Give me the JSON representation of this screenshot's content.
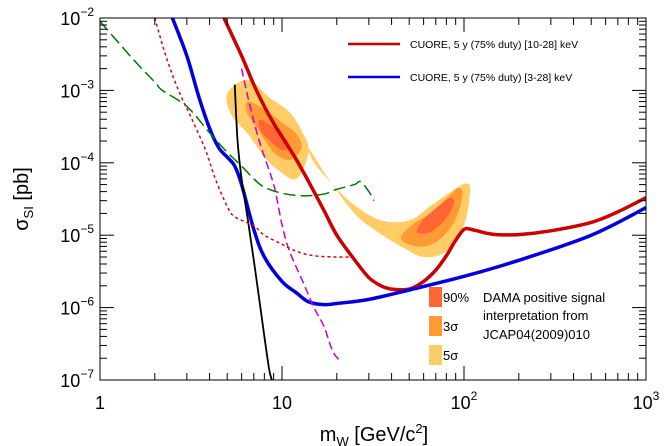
{
  "chart_data": {
    "type": "line",
    "x_scale": "log",
    "y_scale": "log",
    "xlim": [
      1,
      1000
    ],
    "ylim": [
      1e-07,
      0.01
    ],
    "xlabel": {
      "main": "m",
      "sub": "W",
      "unit_pre": " [GeV/c",
      "unit_sup": "2",
      "unit_post": "]"
    },
    "ylabel": {
      "main": "σ",
      "sub": "SI",
      "unit": " [pb]"
    },
    "x_ticks": [
      {
        "value": 1,
        "label": "1",
        "sup": ""
      },
      {
        "value": 10,
        "label": "10",
        "sup": ""
      },
      {
        "value": 100,
        "label": "10",
        "sup": "2"
      },
      {
        "value": 1000,
        "label": "10",
        "sup": "3"
      }
    ],
    "y_ticks": [
      {
        "value": 1e-07,
        "label": "10",
        "sup": "−7"
      },
      {
        "value": 1e-06,
        "label": "10",
        "sup": "−6"
      },
      {
        "value": 1e-05,
        "label": "10",
        "sup": "−5"
      },
      {
        "value": 0.0001,
        "label": "10",
        "sup": "−4"
      },
      {
        "value": 0.001,
        "label": "10",
        "sup": "−3"
      },
      {
        "value": 0.01,
        "label": "10",
        "sup": "−2"
      }
    ],
    "regions": [
      {
        "level": "5sigma",
        "color": "#ffcc66",
        "polygons": [
          [
            [
              5,
              0.0009
            ],
            [
              6.5,
              0.0014
            ],
            [
              8.5,
              0.0008
            ],
            [
              11,
              0.0005
            ],
            [
              13,
              0.00026
            ],
            [
              14,
              0.00014
            ],
            [
              12,
              6e-05
            ],
            [
              9.5,
              8e-05
            ],
            [
              8,
              0.00012
            ],
            [
              6.5,
              0.00025
            ],
            [
              5.3,
              0.00045
            ]
          ],
          [
            [
              14,
              0.00016
            ],
            [
              18,
              6e-05
            ],
            [
              25,
              2e-05
            ],
            [
              32,
              1.2e-05
            ],
            [
              45,
              7e-06
            ],
            [
              60,
              5e-06
            ],
            [
              80,
              6e-06
            ],
            [
              100,
              1.4e-05
            ],
            [
              108,
              4e-05
            ],
            [
              103,
              5.2e-05
            ],
            [
              85,
              4e-05
            ],
            [
              65,
              2.5e-05
            ],
            [
              50,
              1.6e-05
            ],
            [
              35,
              1.6e-05
            ],
            [
              25,
              2.6e-05
            ],
            [
              19,
              5e-05
            ],
            [
              15,
              0.0001
            ]
          ]
        ]
      },
      {
        "level": "3sigma",
        "color": "#ff9933",
        "polygons": [
          [
            [
              6.5,
              0.0007
            ],
            [
              8,
              0.00055
            ],
            [
              10,
              0.00036
            ],
            [
              12,
              0.00025
            ],
            [
              12.8,
              0.00016
            ],
            [
              11,
              0.00011
            ],
            [
              9,
              0.00014
            ],
            [
              7.3,
              0.0003
            ],
            [
              6.4,
              0.0005
            ]
          ],
          [
            [
              45,
              9e-06
            ],
            [
              55,
              7e-06
            ],
            [
              70,
              8e-06
            ],
            [
              88,
              1.5e-05
            ],
            [
              98,
              3.5e-05
            ],
            [
              93,
              4.5e-05
            ],
            [
              80,
              3.2e-05
            ],
            [
              65,
              2e-05
            ],
            [
              52,
              1.4e-05
            ]
          ]
        ]
      },
      {
        "level": "90%",
        "color": "#ff6633",
        "polygons": [
          [
            [
              7.5,
              0.00039
            ],
            [
              8.5,
              0.00034
            ],
            [
              10,
              0.00025
            ],
            [
              11,
              0.00017
            ],
            [
              10,
              0.00015
            ],
            [
              8.6,
              0.0002
            ],
            [
              7.6,
              0.00028
            ]
          ],
          [
            [
              55,
              1.1e-05
            ],
            [
              65,
              1.1e-05
            ],
            [
              78,
              1.6e-05
            ],
            [
              88,
              2.7e-05
            ],
            [
              85,
              3.3e-05
            ],
            [
              75,
              2.7e-05
            ],
            [
              65,
              2e-05
            ],
            [
              58,
              1.5e-05
            ]
          ]
        ]
      }
    ],
    "series": [
      {
        "name": "CUORE, 5 y (75% duty) [10-28] keV",
        "color": "#cc0000",
        "width": 3.5,
        "dash": "",
        "points": [
          [
            4.8,
            0.01
          ],
          [
            6,
            0.003
          ],
          [
            7,
            0.0012
          ],
          [
            8,
            0.0006
          ],
          [
            9,
            0.00035
          ],
          [
            10,
            0.00023
          ],
          [
            12,
            0.00011
          ],
          [
            14,
            5.5e-05
          ],
          [
            17,
            2.2e-05
          ],
          [
            20,
            1e-05
          ],
          [
            25,
            4.6e-06
          ],
          [
            30,
            2.6e-06
          ],
          [
            35,
            2e-06
          ],
          [
            40,
            1.8e-06
          ],
          [
            50,
            1.8e-06
          ],
          [
            60,
            2.3e-06
          ],
          [
            70,
            3.3e-06
          ],
          [
            80,
            5.2e-06
          ],
          [
            90,
            8.5e-06
          ],
          [
            100,
            1.2e-05
          ],
          [
            110,
            1.2e-05
          ],
          [
            130,
            1.08e-05
          ],
          [
            150,
            1.02e-05
          ],
          [
            200,
            1.02e-05
          ],
          [
            300,
            1.15e-05
          ],
          [
            500,
            1.5e-05
          ],
          [
            700,
            2.1e-05
          ],
          [
            1000,
            3.3e-05
          ]
        ]
      },
      {
        "name": "CUORE, 5 y (75% duty) [3-28] keV",
        "color": "#0000dd",
        "width": 3.5,
        "dash": "",
        "points": [
          [
            2.5,
            0.01
          ],
          [
            3,
            0.003
          ],
          [
            3.5,
            0.0008
          ],
          [
            4,
            0.0003
          ],
          [
            4.5,
            0.00016
          ],
          [
            5,
            0.00012
          ],
          [
            5.5,
            9e-05
          ],
          [
            6,
            5e-05
          ],
          [
            7,
            1.2e-05
          ],
          [
            8,
            5e-06
          ],
          [
            10,
            2.3e-06
          ],
          [
            12,
            1.6e-06
          ],
          [
            14,
            1.2e-06
          ],
          [
            17,
            1.1e-06
          ],
          [
            20,
            1.14e-06
          ],
          [
            30,
            1.3e-06
          ],
          [
            50,
            1.75e-06
          ],
          [
            100,
            2.7e-06
          ],
          [
            200,
            4.5e-06
          ],
          [
            500,
            1e-05
          ],
          [
            1000,
            2.4e-05
          ]
        ]
      },
      {
        "name": "",
        "color": "#000000",
        "width": 1.8,
        "dash": "",
        "points": [
          [
            5.5,
            0.0012
          ],
          [
            5.7,
            0.0002
          ],
          [
            6,
            6e-05
          ],
          [
            6.5,
            1.6e-05
          ],
          [
            7,
            4.5e-06
          ],
          [
            7.5,
            1.3e-06
          ],
          [
            8,
            4e-07
          ],
          [
            8.5,
            1.4e-07
          ],
          [
            8.8,
            1e-07
          ]
        ]
      },
      {
        "name": "",
        "color": "#cc00cc",
        "width": 1.5,
        "dash": "8,4",
        "points": [
          [
            6,
            0.002
          ],
          [
            6.5,
            0.0008
          ],
          [
            7.5,
            0.0002
          ],
          [
            9,
            5e-05
          ],
          [
            10,
            1.4e-05
          ],
          [
            11,
            6e-06
          ],
          [
            13,
            2.3e-06
          ],
          [
            15,
            1e-06
          ],
          [
            17,
            5.5e-07
          ],
          [
            19,
            2.5e-07
          ],
          [
            21,
            1.8e-07
          ]
        ]
      },
      {
        "name": "",
        "color": "#dd0000",
        "width": 1.5,
        "dash": "3,3",
        "points": [
          [
            2,
            0.01
          ],
          [
            2.3,
            0.003
          ],
          [
            2.7,
            0.001
          ],
          [
            3.2,
            0.0004
          ],
          [
            3.8,
            0.00015
          ],
          [
            4.3,
            6e-05
          ],
          [
            5,
            2.5e-05
          ],
          [
            5.5,
            1.8e-05
          ],
          [
            7,
            1.35e-05
          ],
          [
            8,
            1e-05
          ],
          [
            10,
            7.5e-06
          ],
          [
            12,
            6e-06
          ],
          [
            15,
            5.2e-06
          ],
          [
            20,
            5e-06
          ],
          [
            25,
            5e-06
          ]
        ]
      },
      {
        "name": "",
        "color": "#007700",
        "width": 1.5,
        "dash": "12,5",
        "points": [
          [
            1,
            0.009
          ],
          [
            1.5,
            0.0028
          ],
          [
            2,
            0.0013
          ],
          [
            2.2,
            0.001
          ],
          [
            3,
            0.0006
          ],
          [
            4,
            0.00026
          ],
          [
            5,
            0.00014
          ],
          [
            6,
            9e-05
          ],
          [
            7,
            6e-05
          ],
          [
            8,
            4.6e-05
          ],
          [
            10,
            3.8e-05
          ],
          [
            13,
            3.5e-05
          ],
          [
            17,
            3.7e-05
          ],
          [
            20,
            4.3e-05
          ],
          [
            25,
            5e-05
          ],
          [
            27,
            5.5e-05
          ],
          [
            30,
            4e-05
          ],
          [
            32,
            3e-05
          ]
        ]
      }
    ],
    "dama_legend": {
      "items": [
        {
          "level": "90%",
          "label": "90%",
          "color": "#ff6633"
        },
        {
          "level": "3sigma",
          "label": "3σ",
          "color": "#ff9933"
        },
        {
          "level": "5sigma",
          "label": "5σ",
          "color": "#ffcc66"
        }
      ],
      "text_lines": [
        "DAMA positive signal",
        "interpretation from",
        "JCAP04(2009)010"
      ]
    }
  }
}
